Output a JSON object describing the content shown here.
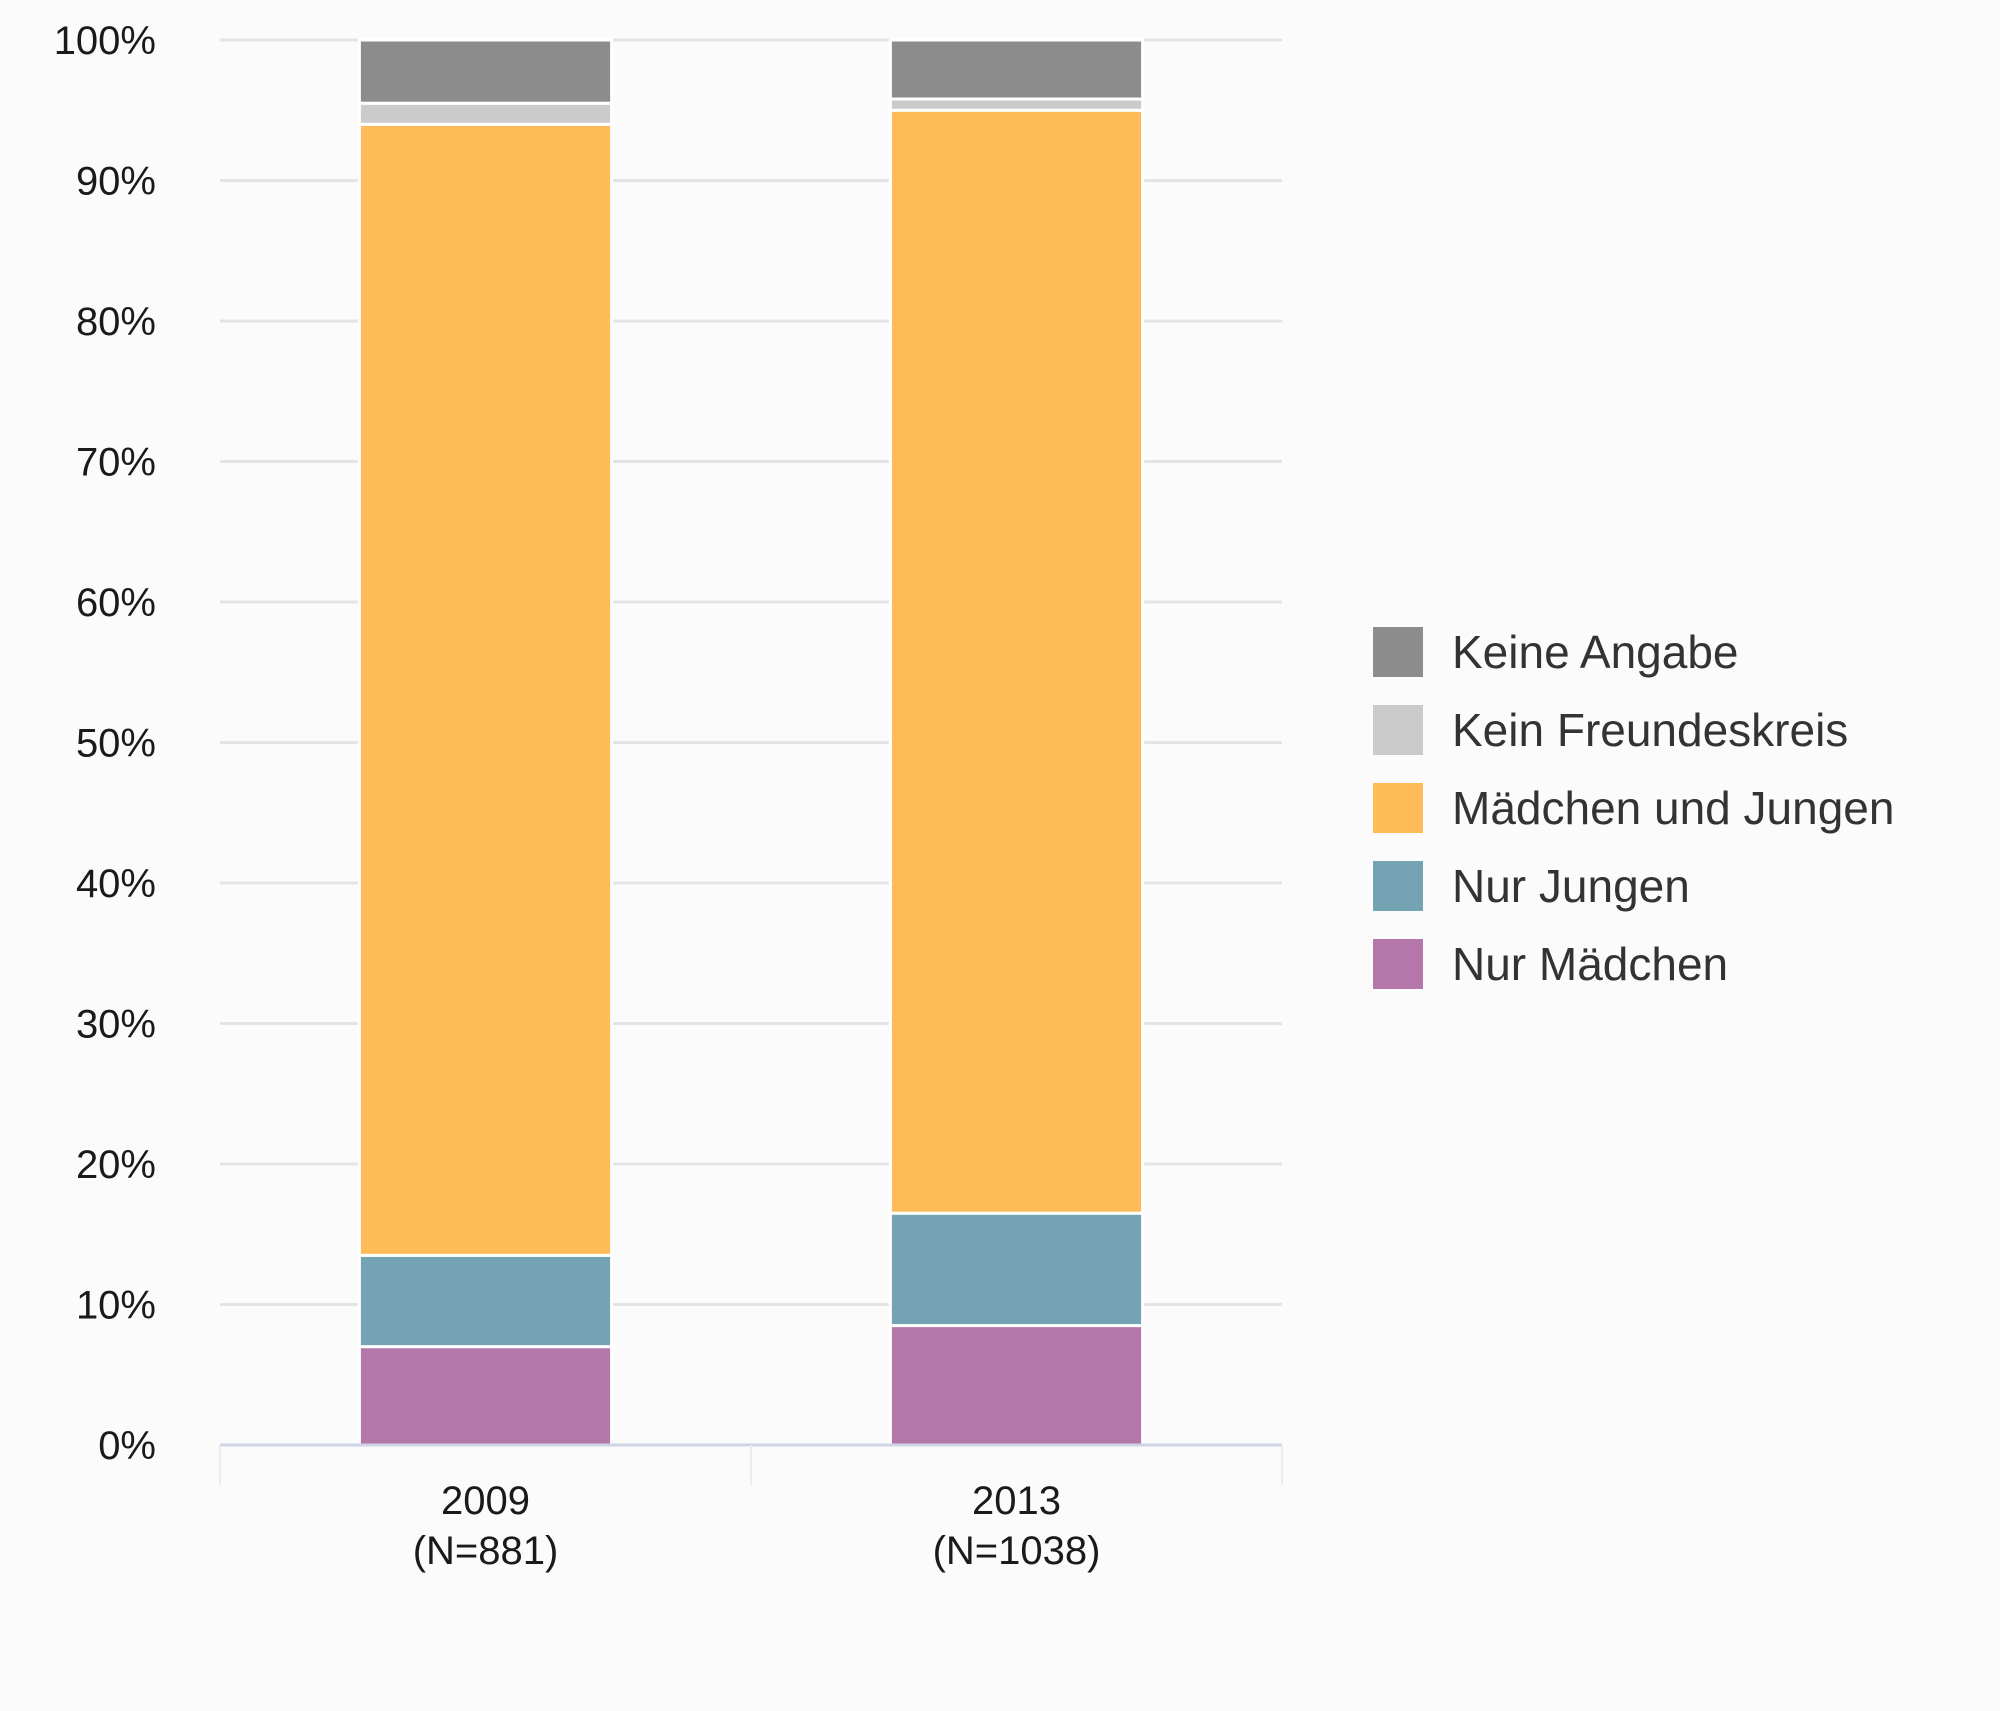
{
  "chart_data": {
    "type": "bar",
    "stacked": true,
    "categories": [
      "2009",
      "2013"
    ],
    "category_sublabels": [
      "(N=881)",
      "(N=1038)"
    ],
    "series": [
      {
        "name": "Nur Mädchen",
        "color": "#b577a9",
        "values": [
          7.0,
          8.5
        ]
      },
      {
        "name": "Nur Jungen",
        "color": "#74a3b4",
        "values": [
          6.5,
          8.0
        ]
      },
      {
        "name": "Mädchen und Jungen",
        "color": "#ffbb58",
        "values": [
          80.5,
          78.5
        ]
      },
      {
        "name": "Kein Freundeskreis",
        "color": "#cbcbcb",
        "values": [
          1.5,
          0.8
        ]
      },
      {
        "name": "Keine Angabe",
        "color": "#8c8c8c",
        "values": [
          4.5,
          4.2
        ]
      }
    ],
    "legend_order": [
      "Keine Angabe",
      "Kein Freundeskreis",
      "Mädchen und Jungen",
      "Nur Jungen",
      "Nur Mädchen"
    ],
    "ylim": [
      0,
      100
    ],
    "yticks": [
      "0%",
      "10%",
      "20%",
      "30%",
      "40%",
      "50%",
      "60%",
      "70%",
      "80%",
      "90%",
      "100%"
    ],
    "grid": true,
    "legend_position": "right"
  }
}
